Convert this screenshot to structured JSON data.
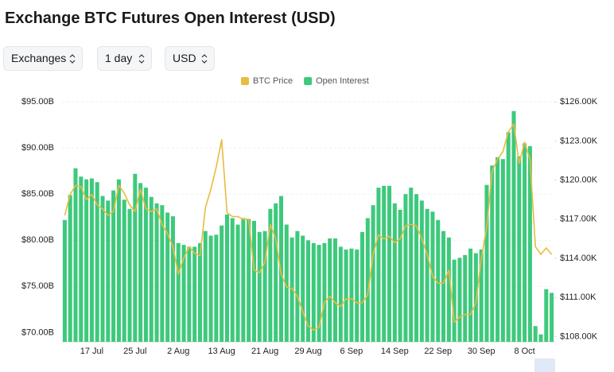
{
  "header": {
    "title": "Exchange BTC Futures Open Interest (USD)"
  },
  "controls": [
    "Exchanges",
    "1 day",
    "USD"
  ],
  "chart_data": {
    "type": "bar",
    "categories": [
      null,
      null,
      null,
      null,
      null,
      "17 Jul",
      null,
      null,
      null,
      null,
      null,
      null,
      null,
      "25 Jul",
      null,
      null,
      null,
      null,
      null,
      null,
      null,
      "2 Aug",
      null,
      null,
      null,
      null,
      null,
      null,
      null,
      "13 Aug",
      null,
      null,
      null,
      null,
      null,
      null,
      null,
      "21 Aug",
      null,
      null,
      null,
      null,
      null,
      null,
      null,
      "29 Aug",
      null,
      null,
      null,
      null,
      null,
      null,
      null,
      "6 Sep",
      null,
      null,
      null,
      null,
      null,
      null,
      null,
      "14 Sep",
      null,
      null,
      null,
      null,
      null,
      null,
      null,
      "22 Sep",
      null,
      null,
      null,
      null,
      null,
      null,
      null,
      "30 Sep",
      null,
      null,
      null,
      null,
      null,
      null,
      null,
      "8 Oct",
      null,
      null,
      null,
      null,
      null
    ],
    "series": [
      {
        "name": "Open Interest",
        "type": "bar",
        "color": "#3dc97c",
        "values": [
          82.2,
          84.9,
          87.8,
          86.9,
          86.6,
          86.7,
          86.3,
          84.8,
          84.3,
          85.4,
          86.6,
          84.4,
          83.4,
          87.2,
          86.2,
          85.7,
          84.7,
          84.0,
          83.8,
          83.0,
          82.6,
          79.7,
          79.5,
          79.3,
          79.3,
          79.7,
          81.0,
          80.5,
          80.6,
          81.6,
          82.8,
          82.4,
          81.7,
          82.4,
          82.3,
          82.1,
          80.9,
          81.0,
          83.4,
          84.0,
          84.8,
          81.7,
          80.3,
          81.0,
          80.5,
          80.0,
          79.7,
          79.5,
          79.7,
          80.2,
          80.2,
          79.3,
          79.0,
          79.1,
          79.0,
          80.9,
          82.4,
          83.8,
          85.7,
          85.9,
          85.9,
          84.0,
          83.3,
          85.0,
          85.7,
          85.0,
          84.3,
          83.4,
          83.1,
          82.2,
          81.0,
          80.3,
          77.9,
          78.1,
          78.4,
          79.1,
          78.6,
          79.0,
          86.0,
          88.1,
          89.0,
          88.8,
          91.7,
          94.0,
          89.1,
          90.5,
          90.2,
          70.7,
          69.8,
          74.7,
          74.3
        ]
      },
      {
        "name": "BTC Price",
        "type": "line",
        "axis": "y2",
        "color": "#e9bb3f",
        "values": [
          117.3,
          118.9,
          119.6,
          119.5,
          118.5,
          118.9,
          118.1,
          117.8,
          117.3,
          117.6,
          119.6,
          119.0,
          118.1,
          117.6,
          119.3,
          117.8,
          117.6,
          117.8,
          116.6,
          115.9,
          114.9,
          112.8,
          114.0,
          114.9,
          114.4,
          114.2,
          117.9,
          119.3,
          121.0,
          123.1,
          117.5,
          117.2,
          117.2,
          117.0,
          117.0,
          113.1,
          112.9,
          113.7,
          116.6,
          115.5,
          112.8,
          111.8,
          111.7,
          111.1,
          109.9,
          108.8,
          108.5,
          108.7,
          110.6,
          111.1,
          110.6,
          110.3,
          110.9,
          110.9,
          110.6,
          110.6,
          111.2,
          114.3,
          115.8,
          115.5,
          115.7,
          115.2,
          115.5,
          116.5,
          116.6,
          116.5,
          115.5,
          114.3,
          112.6,
          112.1,
          112.1,
          113.1,
          109.1,
          109.5,
          109.7,
          109.7,
          110.6,
          114.0,
          116.4,
          120.7,
          121.6,
          122.2,
          123.7,
          124.3,
          121.3,
          122.9,
          121.6,
          114.9,
          114.3,
          114.8,
          114.3
        ]
      }
    ],
    "ylim": [
      69,
      95.7
    ],
    "yticks": [
      {
        "value": 70,
        "label": "$70.00B"
      },
      {
        "value": 75,
        "label": "$75.00B"
      },
      {
        "value": 80,
        "label": "$80.00B"
      },
      {
        "value": 85,
        "label": "$85.00B"
      },
      {
        "value": 90,
        "label": "$90.00B"
      },
      {
        "value": 95,
        "label": "$95.00B"
      }
    ],
    "y2lim": [
      107.6,
      126.5
    ],
    "y2ticks": [
      {
        "value": 108,
        "label": "$108.00K"
      },
      {
        "value": 111,
        "label": "$111.00K"
      },
      {
        "value": 114,
        "label": "$114.00K"
      },
      {
        "value": 117,
        "label": "$117.00K"
      },
      {
        "value": 120,
        "label": "$120.00K"
      },
      {
        "value": 123,
        "label": "$123.00K"
      },
      {
        "value": 126,
        "label": "$126.00K"
      }
    ],
    "grid": true,
    "legend": "top"
  }
}
